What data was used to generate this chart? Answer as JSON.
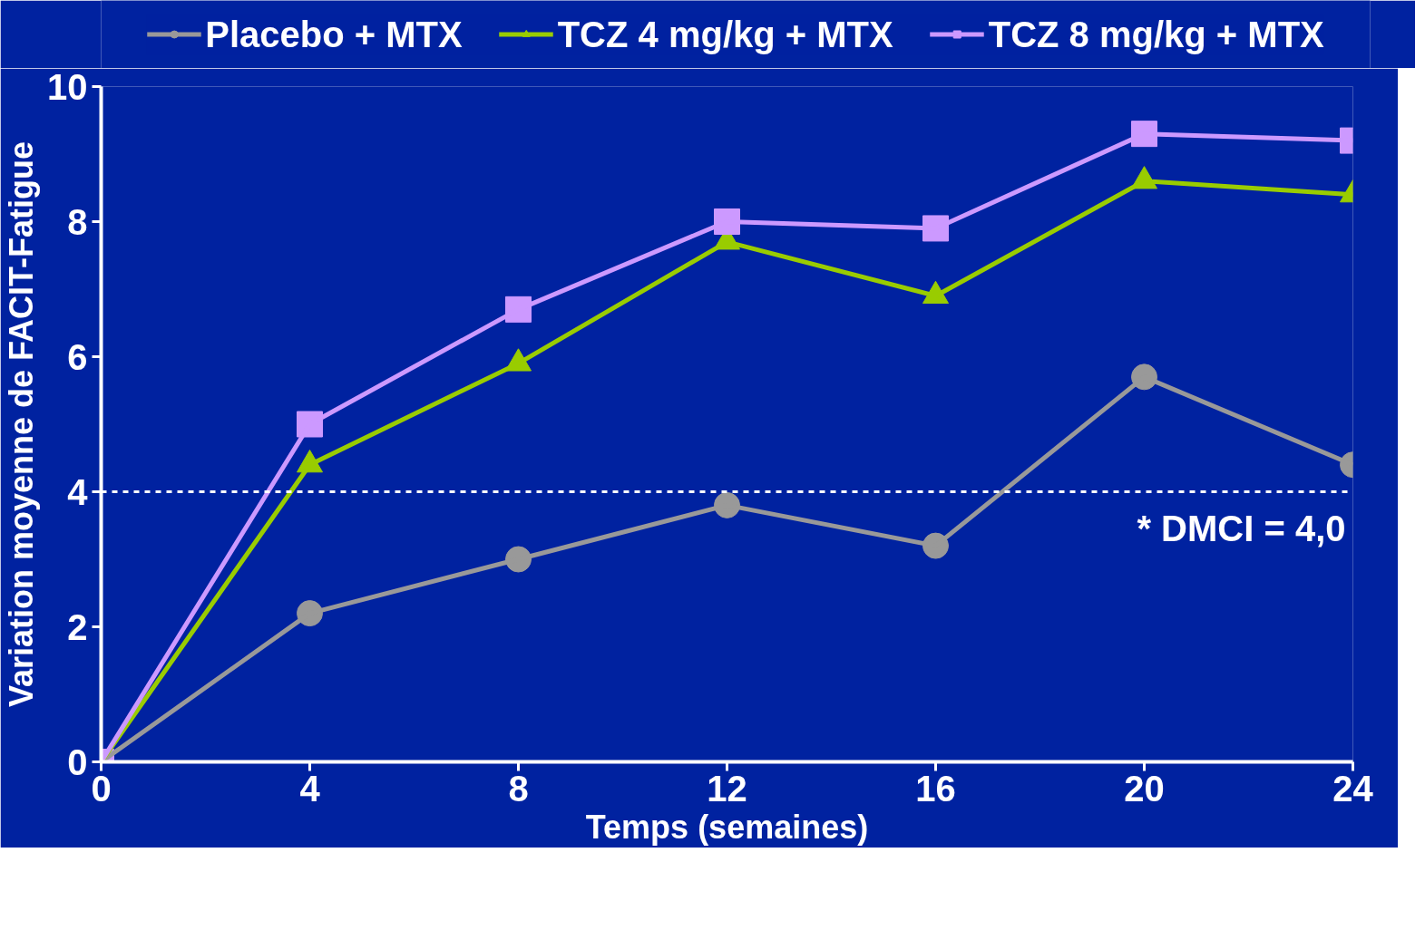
{
  "chart_data": {
    "type": "line",
    "xlabel": "Temps (semaines)",
    "ylabel": "Variation moyenne de FACIT-Fatigue",
    "x": [
      0,
      4,
      8,
      12,
      16,
      20,
      24
    ],
    "series": [
      {
        "name": "Placebo + MTX",
        "color": "#999999",
        "marker": "circle",
        "values": [
          0,
          2.2,
          3.0,
          3.8,
          3.2,
          5.7,
          4.4
        ]
      },
      {
        "name": "TCZ 4 mg/kg + MTX",
        "color": "#99cc00",
        "marker": "triangle",
        "values": [
          0,
          4.4,
          5.9,
          7.7,
          6.9,
          8.6,
          8.4
        ]
      },
      {
        "name": "TCZ 8 mg/kg + MTX",
        "color": "#cc99ff",
        "marker": "square",
        "values": [
          0,
          5.0,
          6.7,
          8.0,
          7.9,
          9.3,
          9.2
        ]
      }
    ],
    "xlim": [
      0,
      24
    ],
    "xticks": [
      0,
      4,
      8,
      12,
      16,
      20,
      24
    ],
    "ylim": [
      0,
      10
    ],
    "yticks": [
      0,
      2,
      4,
      6,
      8,
      10
    ],
    "ref_lines": [
      {
        "axis": "y",
        "value": 4,
        "label": "* DMCI = 4,0",
        "color": "#ffffff",
        "line_style": "dashed"
      }
    ],
    "grid": false,
    "legend": "top",
    "line_style": "solid"
  }
}
